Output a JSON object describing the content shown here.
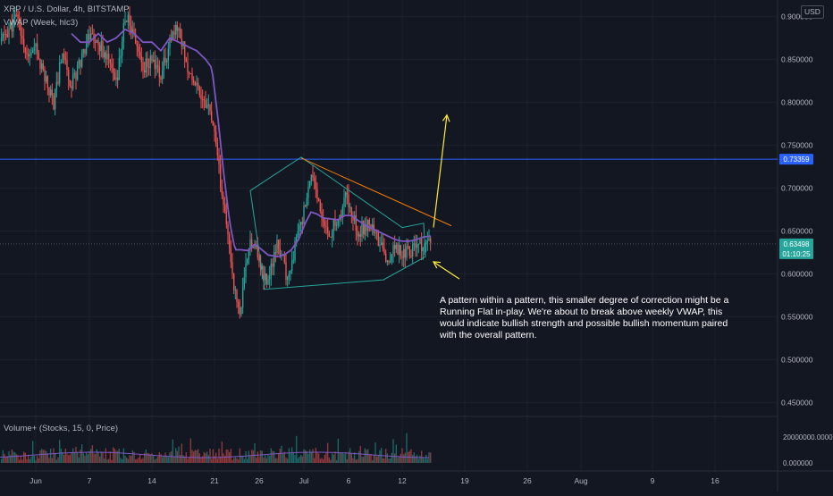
{
  "header": {
    "symbol_line": "XRP / U.S. Dollar, 4h, BITSTAMP",
    "indicator_line": "VWAP (Week, hlc3)",
    "currency": "USD"
  },
  "volume_panel": {
    "label": "Volume+ (Stocks, 15, 0, Price)"
  },
  "annotation": "A pattern within a pattern, this smaller degree of correction might be a Running Flat in-play. We're about to break above weekly VWAP, this would indicate bullish strength and possible bullish momentum paired with the overall pattern.",
  "price_labels": {
    "horizontal_level": "0.73359",
    "last_price": "0.63498",
    "countdown": "01:10:25"
  },
  "colors": {
    "background": "#131722",
    "up": "#26a69a",
    "down": "#ef5350",
    "vwap": "#7e57c2",
    "wedge": "#26a69a",
    "trendline": "#f57c00",
    "level_line": "#2962ff",
    "arrow": "#ffeb3b",
    "last_price_badge": "#26a69a"
  },
  "chart_data": {
    "type": "candlestick",
    "y_ticks": [
      "0.900000",
      "0.850000",
      "0.800000",
      "0.750000",
      "0.700000",
      "0.650000",
      "0.600000",
      "0.550000",
      "0.500000",
      "0.450000"
    ],
    "volume_ticks": [
      "20000000.000000",
      "0.000000"
    ],
    "x_ticks": [
      "Jun",
      "7",
      "14",
      "21",
      "26",
      "Jul",
      "6",
      "12",
      "19",
      "26",
      "Aug",
      "9",
      "16"
    ],
    "x_tick_days": [
      0,
      6,
      13,
      20,
      25,
      30,
      35,
      41,
      48,
      55,
      61,
      69,
      76
    ],
    "ylim": [
      0.44,
      0.915
    ],
    "xlim": [
      -4,
      83
    ],
    "horizontal_level": 0.73359,
    "last_price": 0.63498,
    "path_anchors": [
      [
        -4,
        0.87
      ],
      [
        -2,
        0.9
      ],
      [
        -1,
        0.85
      ],
      [
        0,
        0.86
      ],
      [
        1,
        0.83
      ],
      [
        2,
        0.8
      ],
      [
        3,
        0.86
      ],
      [
        4,
        0.82
      ],
      [
        5,
        0.85
      ],
      [
        6,
        0.88
      ],
      [
        7,
        0.87
      ],
      [
        8,
        0.85
      ],
      [
        9,
        0.82
      ],
      [
        10,
        0.9
      ],
      [
        11,
        0.88
      ],
      [
        12,
        0.84
      ],
      [
        13,
        0.85
      ],
      [
        14,
        0.83
      ],
      [
        15,
        0.87
      ],
      [
        16,
        0.89
      ],
      [
        17,
        0.84
      ],
      [
        18,
        0.82
      ],
      [
        19,
        0.8
      ],
      [
        19.7,
        0.78
      ],
      [
        20.5,
        0.72
      ],
      [
        21,
        0.68
      ],
      [
        21.8,
        0.62
      ],
      [
        22.4,
        0.57
      ],
      [
        22.9,
        0.555
      ],
      [
        23.5,
        0.605
      ],
      [
        24,
        0.645
      ],
      [
        24.5,
        0.63
      ],
      [
        25,
        0.615
      ],
      [
        25.8,
        0.59
      ],
      [
        26.3,
        0.604
      ],
      [
        27,
        0.632
      ],
      [
        27.5,
        0.625
      ],
      [
        28,
        0.595
      ],
      [
        28.6,
        0.61
      ],
      [
        29.2,
        0.642
      ],
      [
        29.8,
        0.662
      ],
      [
        30.4,
        0.69
      ],
      [
        31,
        0.715
      ],
      [
        31.5,
        0.69
      ],
      [
        32,
        0.66
      ],
      [
        32.8,
        0.646
      ],
      [
        33.6,
        0.66
      ],
      [
        34.2,
        0.672
      ],
      [
        34.8,
        0.693
      ],
      [
        35.5,
        0.67
      ],
      [
        36,
        0.65
      ],
      [
        36.8,
        0.655
      ],
      [
        37.5,
        0.66
      ],
      [
        38,
        0.645
      ],
      [
        38.6,
        0.635
      ],
      [
        39.2,
        0.615
      ],
      [
        39.8,
        0.626
      ],
      [
        40.5,
        0.63
      ],
      [
        41.2,
        0.625
      ],
      [
        41.8,
        0.628
      ],
      [
        42.4,
        0.632
      ],
      [
        42.9,
        0.635
      ],
      [
        43.3,
        0.63
      ],
      [
        43.7,
        0.63
      ],
      [
        44.2,
        0.635
      ]
    ],
    "vwap_anchors": [
      [
        4,
        0.88
      ],
      [
        5,
        0.87
      ],
      [
        6,
        0.87
      ],
      [
        7,
        0.88
      ],
      [
        8,
        0.87
      ],
      [
        9,
        0.875
      ],
      [
        10,
        0.885
      ],
      [
        11,
        0.88
      ],
      [
        12,
        0.87
      ],
      [
        13,
        0.87
      ],
      [
        14,
        0.86
      ],
      [
        15,
        0.875
      ],
      [
        16,
        0.87
      ],
      [
        17,
        0.865
      ],
      [
        18,
        0.86
      ],
      [
        19,
        0.85
      ],
      [
        19.7,
        0.84
      ],
      [
        20.4,
        0.78
      ],
      [
        21,
        0.72
      ],
      [
        21.7,
        0.66
      ],
      [
        22.3,
        0.628
      ],
      [
        23,
        0.628
      ],
      [
        23.8,
        0.627
      ],
      [
        24.5,
        0.635
      ],
      [
        25.3,
        0.628
      ],
      [
        26,
        0.622
      ],
      [
        27,
        0.62
      ],
      [
        27.8,
        0.622
      ],
      [
        28.6,
        0.628
      ],
      [
        29.4,
        0.64
      ],
      [
        30.2,
        0.66
      ],
      [
        30.8,
        0.672
      ],
      [
        31.4,
        0.67
      ],
      [
        32.2,
        0.665
      ],
      [
        33,
        0.664
      ],
      [
        33.8,
        0.663
      ],
      [
        34.6,
        0.668
      ],
      [
        35.3,
        0.668
      ],
      [
        36.1,
        0.662
      ],
      [
        37,
        0.656
      ],
      [
        37.8,
        0.652
      ],
      [
        38.6,
        0.648
      ],
      [
        39.4,
        0.644
      ],
      [
        40.2,
        0.64
      ],
      [
        41,
        0.638
      ],
      [
        41.8,
        0.638
      ],
      [
        42.6,
        0.64
      ],
      [
        43.4,
        0.643
      ],
      [
        44.2,
        0.644
      ]
    ],
    "drawings": {
      "wedge": [
        [
          24.0,
          0.697
        ],
        [
          29.7,
          0.736
        ],
        [
          41.0,
          0.654
        ],
        [
          43.4,
          0.659
        ],
        [
          43.6,
          0.62
        ],
        [
          38.9,
          0.593
        ],
        [
          25.6,
          0.582
        ]
      ],
      "trendline": [
        [
          29.7,
          0.735
        ],
        [
          46.5,
          0.656
        ]
      ],
      "up_arrow": [
        [
          44.5,
          0.654
        ],
        [
          46.0,
          0.785
        ]
      ],
      "pointer_arrow": [
        [
          47.4,
          0.594
        ],
        [
          44.5,
          0.614
        ]
      ]
    }
  }
}
